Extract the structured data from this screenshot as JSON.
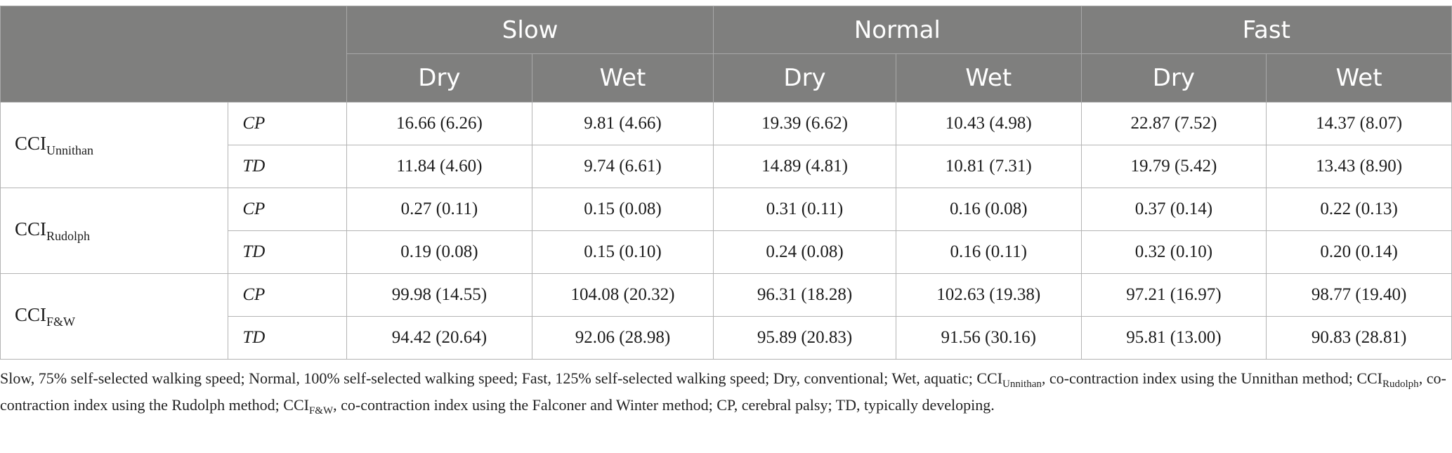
{
  "header": {
    "speeds": [
      "Slow",
      "Normal",
      "Fast"
    ],
    "conditions": [
      "Dry",
      "Wet",
      "Dry",
      "Wet",
      "Dry",
      "Wet"
    ]
  },
  "rows": [
    {
      "metric_base": "CCI",
      "metric_sub": "Unnithan",
      "groups": [
        {
          "group": "CP",
          "values": [
            "16.66 (6.26)",
            "9.81 (4.66)",
            "19.39 (6.62)",
            "10.43 (4.98)",
            "22.87 (7.52)",
            "14.37 (8.07)"
          ]
        },
        {
          "group": "TD",
          "values": [
            "11.84 (4.60)",
            "9.74 (6.61)",
            "14.89 (4.81)",
            "10.81 (7.31)",
            "19.79 (5.42)",
            "13.43 (8.90)"
          ]
        }
      ]
    },
    {
      "metric_base": "CCI",
      "metric_sub": "Rudolph",
      "groups": [
        {
          "group": "CP",
          "values": [
            "0.27 (0.11)",
            "0.15 (0.08)",
            "0.31 (0.11)",
            "0.16 (0.08)",
            "0.37 (0.14)",
            "0.22 (0.13)"
          ]
        },
        {
          "group": "TD",
          "values": [
            "0.19 (0.08)",
            "0.15 (0.10)",
            "0.24 (0.08)",
            "0.16 (0.11)",
            "0.32 (0.10)",
            "0.20 (0.14)"
          ]
        }
      ]
    },
    {
      "metric_base": "CCI",
      "metric_sub": "F&W",
      "groups": [
        {
          "group": "CP",
          "values": [
            "99.98 (14.55)",
            "104.08 (20.32)",
            "96.31 (18.28)",
            "102.63 (19.38)",
            "97.21 (16.97)",
            "98.77 (19.40)"
          ]
        },
        {
          "group": "TD",
          "values": [
            "94.42 (20.64)",
            "92.06 (28.98)",
            "95.89 (20.83)",
            "91.56 (30.16)",
            "95.81 (13.00)",
            "90.83 (28.81)"
          ]
        }
      ]
    }
  ],
  "footnote": {
    "part1": "Slow, 75% self-selected walking speed; Normal, 100% self-selected walking speed; Fast, 125% self-selected walking speed; Dry, conventional; Wet, aquatic; CCI",
    "sub1": "Unnithan",
    "part2": ", co-contraction index using the Unnithan method; CCI",
    "sub2": "Rudolph",
    "part3": ", co-contraction index using the Rudolph method; CCI",
    "sub3": "F&W",
    "part4": ", co-contraction index using the Falconer and Winter method; CP, cerebral palsy; TD, typically developing."
  }
}
